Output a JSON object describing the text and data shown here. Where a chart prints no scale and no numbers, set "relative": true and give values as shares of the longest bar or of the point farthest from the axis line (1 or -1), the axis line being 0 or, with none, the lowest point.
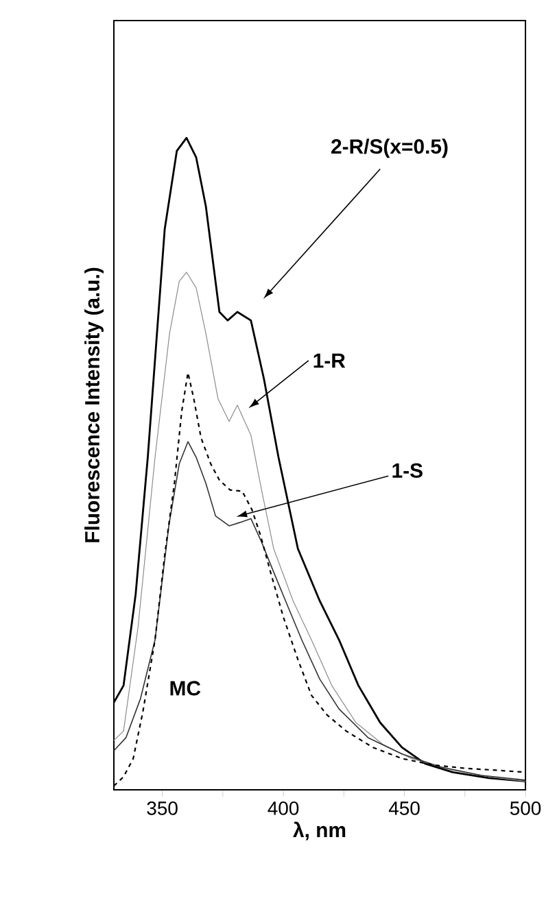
{
  "chart_data": {
    "type": "line",
    "relative": true,
    "xlabel": "λ, nm",
    "ylabel": "Fluorescence Intensity (a.u.)",
    "xlim": [
      330,
      500
    ],
    "xticks": [
      350,
      {
        "value": 375,
        "label": null
      },
      400,
      {
        "value": 425,
        "label": null
      },
      450,
      {
        "value": 475,
        "label": null
      },
      500
    ],
    "tick_labels": "x",
    "series": [
      {
        "color": "#000000",
        "x": [
          330,
          334,
          339,
          344,
          351,
          356,
          360,
          364,
          368,
          373.6,
          377,
          381,
          386.6,
          392,
          398,
          406,
          415,
          423,
          431,
          440,
          449,
          458.6,
          470,
          485,
          500
        ],
        "values": [
          0.134,
          0.16,
          0.3,
          0.51,
          0.86,
          0.98,
          1.0,
          0.97,
          0.895,
          0.733,
          0.72,
          0.733,
          0.72,
          0.63,
          0.51,
          0.37,
          0.29,
          0.23,
          0.16,
          0.103,
          0.065,
          0.04,
          0.027,
          0.018,
          0.013
        ]
      },
      {
        "color": "#8c8c8c",
        "x": [
          330,
          334,
          340,
          347,
          353,
          357,
          360,
          364,
          368,
          373,
          377.6,
          381,
          386.6,
          391,
          396,
          404,
          411.6,
          420,
          430,
          441,
          453,
          470,
          485,
          500
        ],
        "values": [
          0.076,
          0.09,
          0.25,
          0.51,
          0.7,
          0.78,
          0.794,
          0.77,
          0.7,
          0.6,
          0.565,
          0.59,
          0.544,
          0.46,
          0.37,
          0.29,
          0.23,
          0.16,
          0.103,
          0.07,
          0.048,
          0.03,
          0.02,
          0.013
        ]
      },
      {
        "color": "#333333",
        "x": [
          330,
          335,
          341,
          347,
          352.7,
          357,
          360.6,
          364,
          368,
          372,
          377.6,
          382,
          386.6,
          391,
          396,
          402,
          407.6,
          415,
          423,
          435,
          449,
          465,
          482,
          500
        ],
        "values": [
          0.06,
          0.08,
          0.14,
          0.23,
          0.405,
          0.5,
          0.534,
          0.51,
          0.47,
          0.42,
          0.405,
          0.41,
          0.416,
          0.38,
          0.334,
          0.28,
          0.23,
          0.17,
          0.124,
          0.08,
          0.055,
          0.035,
          0.022,
          0.015
        ]
      },
      {
        "color": "#000000",
        "line_style": "dashed",
        "x": [
          330,
          334,
          338,
          342,
          347,
          351,
          355,
          358,
          360.6,
          363,
          366,
          370,
          373.6,
          378,
          383,
          387,
          390.6,
          395,
          400,
          406,
          411.6,
          418,
          426,
          437,
          449,
          462,
          475,
          488,
          500
        ],
        "values": [
          0.006,
          0.02,
          0.048,
          0.12,
          0.23,
          0.36,
          0.47,
          0.58,
          0.64,
          0.6,
          0.54,
          0.5,
          0.475,
          0.46,
          0.458,
          0.43,
          0.39,
          0.33,
          0.265,
          0.2,
          0.145,
          0.115,
          0.09,
          0.065,
          0.048,
          0.038,
          0.033,
          0.03,
          0.027
        ]
      }
    ],
    "annotations": [
      "2-R/S(x=0.5)",
      "1-R",
      "1-S",
      "MC"
    ]
  }
}
